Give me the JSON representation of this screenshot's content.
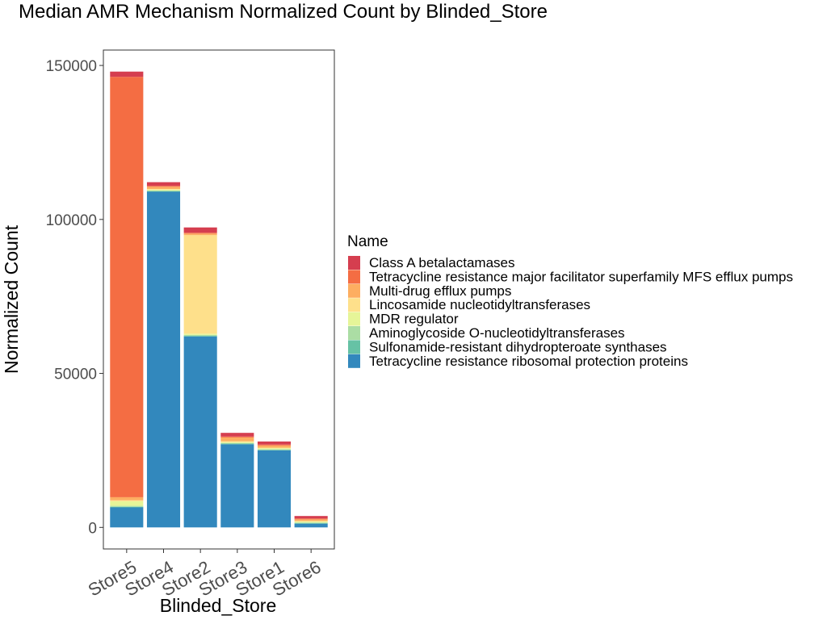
{
  "chart_data": {
    "type": "bar",
    "stacked": true,
    "title": "Median AMR Mechanism Normalized Count by Blinded_Store",
    "xlabel": "Blinded_Store",
    "ylabel": "Normalized Count",
    "ylim": [
      -7000,
      155000
    ],
    "yticks": [
      0,
      50000,
      100000,
      150000
    ],
    "y_tick_labels": [
      "0",
      "50000",
      "100000",
      "150000"
    ],
    "grid": false,
    "legend_title": "Name",
    "legend_position": "right",
    "categories": [
      "Store5",
      "Store4",
      "Store2",
      "Store3",
      "Store1",
      "Store6"
    ],
    "series": [
      {
        "name": "Tetracycline resistance ribosomal protection proteins",
        "color": "#3288bd",
        "values": [
          6500,
          109000,
          62000,
          27000,
          25000,
          1200
        ]
      },
      {
        "name": "Sulfonamide-resistant dihydropteroate synthases",
        "color": "#66c2a5",
        "values": [
          200,
          200,
          200,
          200,
          200,
          200
        ]
      },
      {
        "name": "Aminoglycoside O-nucleotidyltransferases",
        "color": "#abdda4",
        "values": [
          300,
          200,
          300,
          200,
          200,
          200
        ]
      },
      {
        "name": "MDR regulator",
        "color": "#e6f598",
        "values": [
          1500,
          300,
          400,
          300,
          300,
          300
        ]
      },
      {
        "name": "Lincosamide nucleotidyltransferases",
        "color": "#fee08b",
        "values": [
          300,
          200,
          32000,
          300,
          200,
          200
        ]
      },
      {
        "name": "Multi-drug efflux pumps",
        "color": "#fdae61",
        "values": [
          1000,
          700,
          500,
          1200,
          700,
          500
        ]
      },
      {
        "name": "Tetracycline resistance major facilitator superfamily MFS efflux pumps",
        "color": "#f46d43",
        "values": [
          136500,
          300,
          300,
          300,
          300,
          300
        ]
      },
      {
        "name": "Class A betalactamases",
        "color": "#d53e4f",
        "values": [
          1700,
          1200,
          1700,
          1200,
          1000,
          800
        ]
      }
    ],
    "legend_order": [
      "Class A betalactamases",
      "Tetracycline resistance major facilitator superfamily MFS efflux pumps",
      "Multi-drug efflux pumps",
      "Lincosamide nucleotidyltransferases",
      "MDR regulator",
      "Aminoglycoside O-nucleotidyltransferases",
      "Sulfonamide-resistant dihydropteroate synthases",
      "Tetracycline resistance ribosomal protection proteins"
    ]
  }
}
